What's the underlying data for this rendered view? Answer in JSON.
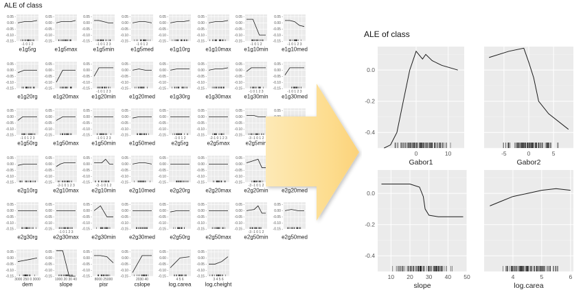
{
  "left": {
    "title": "ALE of class",
    "y_ticks": [
      "0.05 -",
      "0.00 -",
      "-0.05 -",
      "-0.10 -",
      "-0.15 -"
    ],
    "facets": [
      "e1g5rg",
      "e1g5max",
      "e1g5min",
      "e1g5med",
      "e1g10rg",
      "e1g10max",
      "e1g10min",
      "e1g10med",
      "e1g20rg",
      "e1g20max",
      "e1g20min",
      "e1g20med",
      "e1g30rg",
      "e1g30max",
      "e1g30min",
      "e1g30med",
      "e1g50rg",
      "e1g50max",
      "e1g50min",
      "e1g50med",
      "e2g5rg",
      "e2g5max",
      "e2g5min",
      "e2g5med",
      "e2g10rg",
      "e2g10max",
      "e2g10min",
      "e2g10med",
      "e2g20rg",
      "e2g20max",
      "e2g20min",
      "e2g20med",
      "e2g30rg",
      "e2g30max",
      "e2g30min",
      "e2g30med",
      "e2g50rg",
      "e2g50max",
      "e2g50min",
      "e2g50med",
      "dem",
      "slope",
      "pisr",
      "cslope",
      "log.carea",
      "log.cheight"
    ],
    "x_tick_text": [
      "-1 0 1 2",
      "",
      "-1 0 1 2 3",
      "-1 0 1 2",
      "",
      "",
      "-1 0 1 2",
      "-1 0 1 2 3",
      "",
      "",
      "-1 0 1 2 3",
      "",
      "",
      "",
      "-1 0 1 2 3",
      "-1 0 1 2 3",
      "-1 0 1 2 3",
      "",
      "-1 0 1 2 3",
      "",
      "-1 0 1 2",
      "-2-1 0 1 2 3",
      "-3 -1 0 1 2",
      "",
      "",
      "-2-1 0 1 2 3",
      "-3 -1 0 1 2",
      "",
      "",
      "",
      "-3 -1 0 1 2",
      "-3 -1 0 1 2",
      "",
      "-1 0 1 2 3",
      "",
      "",
      "",
      "",
      "-3 -1 0 1 2",
      "",
      "3000 250 0 3000",
      "1000 20 30 40",
      "8000 25000",
      "2030 40",
      "4 5 6",
      "3 4 5 6"
    ]
  },
  "right": {
    "title": "ALE of class",
    "panels": [
      {
        "label": "Gabor1",
        "y_ticks": [
          "0.0",
          "-0.2",
          "-0.4"
        ],
        "x_ticks": [
          "0",
          "10"
        ]
      },
      {
        "label": "Gabor2",
        "y_ticks": [],
        "x_ticks": [
          "-5",
          "0",
          "5"
        ]
      },
      {
        "label": "slope",
        "y_ticks": [
          "0.0",
          "-0.2",
          "-0.4"
        ],
        "x_ticks": [
          "10",
          "20",
          "30",
          "40",
          "50"
        ]
      },
      {
        "label": "log.carea",
        "y_ticks": [],
        "x_ticks": [
          "4",
          "5",
          "6"
        ]
      }
    ]
  },
  "colors": {
    "panel_bg": "#ebebeb",
    "grid": "#ffffff",
    "line": "#1a1a1a",
    "arrow": "#fddc8d"
  },
  "chart_data": [
    {
      "type": "line",
      "title": "ALE of class",
      "ylim": [
        -0.15,
        0.07
      ],
      "grid": true,
      "series": [
        {
          "name": "e1g5rg",
          "x": [
            -1,
            0,
            1,
            2
          ],
          "y": [
            0.0,
            0.01,
            0.01,
            0.02
          ]
        },
        {
          "name": "e1g5max",
          "x": [
            -1,
            0,
            1,
            2,
            3
          ],
          "y": [
            0.0,
            0.01,
            0.01,
            0.01,
            0.02
          ]
        },
        {
          "name": "e1g5min",
          "x": [
            -1,
            0,
            1,
            2,
            3
          ],
          "y": [
            0.02,
            0.02,
            0.01,
            0.0,
            0.0
          ]
        },
        {
          "name": "e1g5med",
          "x": [
            -1,
            0,
            1,
            2
          ],
          "y": [
            0.0,
            0.01,
            0.01,
            0.0
          ]
        },
        {
          "name": "e1g10rg",
          "x": [
            -1,
            0,
            1,
            2
          ],
          "y": [
            0.0,
            0.01,
            0.01,
            0.02
          ]
        },
        {
          "name": "e1g10max",
          "x": [
            -1,
            0,
            1,
            2
          ],
          "y": [
            0.0,
            0.01,
            0.01,
            0.02
          ]
        },
        {
          "name": "e1g10min",
          "x": [
            -1,
            0,
            1,
            2
          ],
          "y": [
            0.03,
            0.03,
            -0.1,
            -0.1
          ]
        },
        {
          "name": "e1g10med",
          "x": [
            -1,
            0,
            1,
            2,
            3
          ],
          "y": [
            0.02,
            0.02,
            0.01,
            -0.02,
            -0.03
          ]
        },
        {
          "name": "e1g20rg",
          "x": [
            -1,
            0,
            1,
            2
          ],
          "y": [
            -0.02,
            0.0,
            0.0,
            0.0
          ]
        },
        {
          "name": "e1g20max",
          "x": [
            -1,
            0,
            1,
            2
          ],
          "y": [
            -0.1,
            0.0,
            0.0,
            0.0
          ]
        },
        {
          "name": "e1g20min",
          "x": [
            -1,
            0,
            1,
            2,
            3
          ],
          "y": [
            -0.05,
            0.02,
            0.02,
            0.02,
            0.02
          ]
        },
        {
          "name": "e1g20med",
          "x": [
            -1,
            0,
            1,
            2
          ],
          "y": [
            0.0,
            0.01,
            0.0,
            0.0
          ]
        },
        {
          "name": "e1g30rg",
          "x": [
            -1,
            0,
            1,
            2
          ],
          "y": [
            0.0,
            0.01,
            0.01,
            0.01
          ]
        },
        {
          "name": "e1g30max",
          "x": [
            -1,
            0,
            1,
            2
          ],
          "y": [
            0.0,
            0.01,
            0.01,
            0.02
          ]
        },
        {
          "name": "e1g30min",
          "x": [
            -1,
            0,
            1,
            2,
            3
          ],
          "y": [
            -0.01,
            0.02,
            0.02,
            0.02,
            0.02
          ]
        },
        {
          "name": "e1g30med",
          "x": [
            -1,
            0,
            1,
            2,
            3
          ],
          "y": [
            -0.04,
            0.02,
            0.02,
            0.02,
            0.02
          ]
        },
        {
          "name": "e1g50rg",
          "x": [
            -1,
            0,
            1,
            2,
            3
          ],
          "y": [
            -0.03,
            0.0,
            0.0,
            0.0,
            0.0
          ]
        },
        {
          "name": "e1g50max",
          "x": [
            -1,
            0,
            1,
            2
          ],
          "y": [
            -0.03,
            0.0,
            0.0,
            0.0
          ]
        },
        {
          "name": "e1g50min",
          "x": [
            -1,
            0,
            1,
            2,
            3
          ],
          "y": [
            0.0,
            0.0,
            0.0,
            0.0,
            0.0
          ]
        },
        {
          "name": "e1g50med",
          "x": [
            -1,
            0,
            1,
            2
          ],
          "y": [
            -0.01,
            0.0,
            0.0,
            0.0
          ]
        },
        {
          "name": "e2g5rg",
          "x": [
            -1,
            0,
            1,
            2
          ],
          "y": [
            0.0,
            0.0,
            0.0,
            0.0
          ]
        },
        {
          "name": "e2g5max",
          "x": [
            -2,
            -1,
            0,
            1,
            2,
            3
          ],
          "y": [
            0.0,
            0.0,
            0.0,
            0.0,
            0.0,
            0.0
          ]
        },
        {
          "name": "e2g5min",
          "x": [
            -3,
            -1,
            0,
            1,
            2
          ],
          "y": [
            0.01,
            0.01,
            0.0,
            0.0,
            0.0
          ]
        },
        {
          "name": "e2g5med",
          "x": [
            -1,
            0,
            1,
            2
          ],
          "y": [
            0.0,
            0.0,
            0.0,
            0.0
          ]
        },
        {
          "name": "e2g10rg",
          "x": [
            -1,
            0,
            1,
            2
          ],
          "y": [
            -0.01,
            0.0,
            0.0,
            0.0
          ]
        },
        {
          "name": "e2g10max",
          "x": [
            -2,
            -1,
            0,
            1,
            2,
            3
          ],
          "y": [
            -0.02,
            0.0,
            0.01,
            0.01,
            0.01,
            0.01
          ]
        },
        {
          "name": "e2g10min",
          "x": [
            -3,
            -1,
            0,
            1,
            2
          ],
          "y": [
            0.01,
            0.01,
            0.04,
            0.0,
            0.0
          ]
        },
        {
          "name": "e2g10med",
          "x": [
            -1,
            0,
            1,
            2
          ],
          "y": [
            0.0,
            0.01,
            0.01,
            0.0
          ]
        },
        {
          "name": "e2g20rg",
          "x": [
            -1,
            0,
            1,
            2
          ],
          "y": [
            0.0,
            0.0,
            0.0,
            0.0
          ]
        },
        {
          "name": "e2g20max",
          "x": [
            -1,
            0,
            1,
            2
          ],
          "y": [
            0.0,
            0.0,
            0.0,
            0.0
          ]
        },
        {
          "name": "e2g20min",
          "x": [
            -3,
            -1,
            0,
            1,
            2
          ],
          "y": [
            0.01,
            0.03,
            0.04,
            -0.03,
            -0.03
          ]
        },
        {
          "name": "e2g20med",
          "x": [
            -3,
            -1,
            0,
            1,
            2
          ],
          "y": [
            0.0,
            0.01,
            0.0,
            0.0,
            0.0
          ]
        },
        {
          "name": "e2g30rg",
          "x": [
            -1,
            0,
            1,
            2
          ],
          "y": [
            0.0,
            0.0,
            0.0,
            0.0
          ]
        },
        {
          "name": "e2g30max",
          "x": [
            -1,
            0,
            1,
            2,
            3
          ],
          "y": [
            0.0,
            0.0,
            0.0,
            0.0,
            0.0
          ]
        },
        {
          "name": "e2g30min",
          "x": [
            -1,
            0,
            1,
            2
          ],
          "y": [
            0.0,
            0.04,
            -0.05,
            -0.05
          ]
        },
        {
          "name": "e2g30med",
          "x": [
            -1,
            0,
            1,
            2
          ],
          "y": [
            0.0,
            0.0,
            0.0,
            0.0
          ]
        },
        {
          "name": "e2g50rg",
          "x": [
            -1,
            0,
            1,
            2
          ],
          "y": [
            -0.01,
            0.0,
            0.0,
            0.0
          ]
        },
        {
          "name": "e2g50max",
          "x": [
            -1,
            0,
            1,
            2
          ],
          "y": [
            0.0,
            0.0,
            0.0,
            0.0
          ]
        },
        {
          "name": "e2g50min",
          "x": [
            -3,
            -1,
            0,
            1,
            2
          ],
          "y": [
            0.0,
            0.01,
            0.04,
            -0.02,
            -0.02
          ]
        },
        {
          "name": "e2g50med",
          "x": [
            -1,
            0,
            1,
            2
          ],
          "y": [
            0.0,
            0.01,
            0.0,
            0.0
          ]
        },
        {
          "name": "dem",
          "x": [
            0,
            1,
            2,
            3
          ],
          "y": [
            -0.03,
            -0.02,
            -0.01,
            0.0
          ]
        },
        {
          "name": "slope",
          "x": [
            10,
            20,
            30,
            40
          ],
          "y": [
            0.06,
            0.06,
            -0.15,
            -0.15
          ]
        },
        {
          "name": "pisr",
          "x": [
            0,
            1,
            2,
            3
          ],
          "y": [
            0.02,
            0.02,
            0.01,
            -0.04
          ]
        },
        {
          "name": "cslope",
          "x": [
            20,
            30,
            40
          ],
          "y": [
            -0.12,
            0.02,
            0.02
          ]
        },
        {
          "name": "log.carea",
          "x": [
            4,
            5,
            6
          ],
          "y": [
            -0.08,
            0.0,
            0.01
          ]
        },
        {
          "name": "log.cheight",
          "x": [
            3,
            4,
            5,
            6
          ],
          "y": [
            -0.05,
            -0.05,
            -0.03,
            0.01
          ]
        }
      ]
    },
    {
      "type": "line",
      "title": "ALE of class",
      "ylim": [
        -0.5,
        0.15
      ],
      "grid": true,
      "series": [
        {
          "name": "Gabor1",
          "x": [
            -10,
            -8,
            -6,
            -4,
            -2,
            0,
            2,
            3,
            5,
            8,
            13
          ],
          "y": [
            -0.5,
            -0.48,
            -0.4,
            -0.2,
            0.0,
            0.12,
            0.07,
            0.1,
            0.06,
            0.03,
            0.0
          ]
        },
        {
          "name": "Gabor2",
          "x": [
            -8,
            -4,
            -1,
            0,
            1,
            2,
            4,
            8
          ],
          "y": [
            0.08,
            0.12,
            0.14,
            0.05,
            -0.05,
            -0.2,
            -0.28,
            -0.38
          ]
        },
        {
          "name": "slope",
          "x": [
            5,
            20,
            25,
            27,
            28,
            30,
            35,
            48
          ],
          "y": [
            0.06,
            0.06,
            0.04,
            -0.02,
            -0.1,
            -0.14,
            -0.15,
            -0.15
          ]
        },
        {
          "name": "log.carea",
          "x": [
            3.2,
            3.6,
            4,
            4.5,
            5,
            5.5,
            6
          ],
          "y": [
            -0.08,
            -0.05,
            -0.02,
            0.0,
            0.02,
            0.03,
            0.02
          ]
        }
      ]
    }
  ]
}
